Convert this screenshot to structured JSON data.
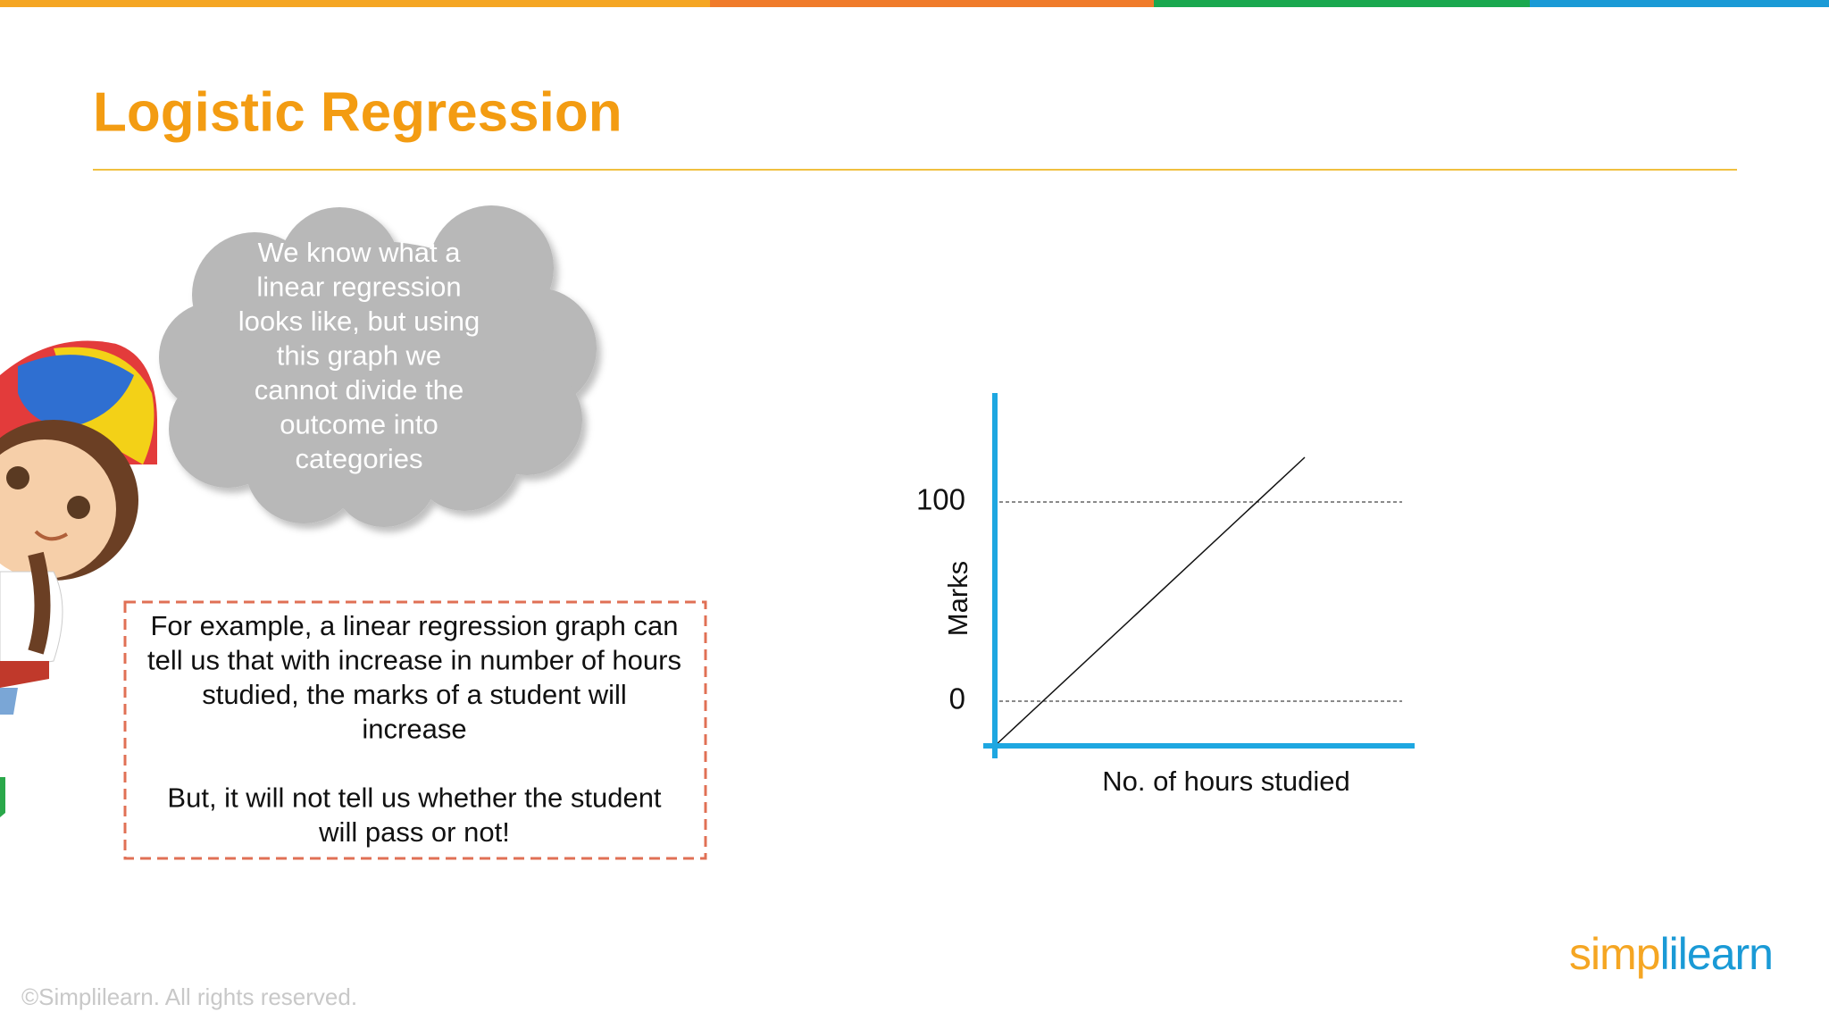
{
  "header": {
    "title": "Logistic Regression"
  },
  "cloud": {
    "lines": [
      "We know what a",
      "linear regression",
      "looks like, but using",
      "this graph we",
      "cannot divide the",
      "outcome into",
      "categories"
    ]
  },
  "note": {
    "paragraphs": [
      [
        "For example, a linear regression graph can",
        "tell us that with increase in number of hours",
        "studied, the marks of a student will",
        "increase"
      ],
      [
        "But, it will not tell us whether the student",
        "will pass or not!"
      ]
    ]
  },
  "graph": {
    "y_label": "Marks",
    "x_label": "No. of hours studied",
    "yticks": [
      100,
      0
    ]
  },
  "footer": {
    "copyright": "©Simplilearn. All rights reserved.",
    "logo": "simplilearn"
  }
}
